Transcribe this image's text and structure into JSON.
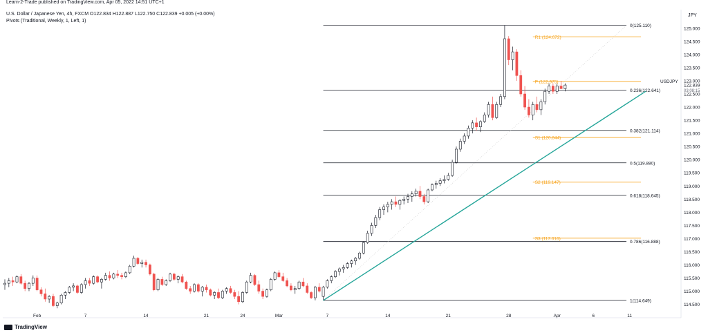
{
  "header": {
    "published": "Learn-2-Trade published on TradingView.com, Apr 05, 2022 14:51 UTC+1",
    "symbol_line": "U.S. Dollar / Japanese Yen, 4h, FXCM  O122.834  H122.887  L122.750  C122.839  +0.005 (+0.00%)",
    "indicator_line": "Pivots (Traditional, Weekly, 1, Left, 1)"
  },
  "footer": {
    "brand": "TradingView"
  },
  "colors": {
    "up": "#131722",
    "down": "#ef5350",
    "fib": "#131722",
    "pivot": "#f7a41d",
    "trend": "#26a69a"
  },
  "chart_data": {
    "type": "candlestick",
    "currency": "JPY",
    "symbol": "USDJPY",
    "last_price": "122.839",
    "countdown": "03:08:15",
    "ylim": [
      114.2,
      125.6
    ],
    "y_ticks": [
      "125.000",
      "124.500",
      "124.000",
      "123.500",
      "123.000",
      "122.500",
      "122.000",
      "121.500",
      "121.000",
      "120.500",
      "120.000",
      "119.500",
      "119.000",
      "118.500",
      "118.000",
      "117.500",
      "117.000",
      "116.500",
      "116.000",
      "115.500",
      "115.000",
      "114.500"
    ],
    "x_ticks": [
      {
        "label": "Feb",
        "i": 8
      },
      {
        "label": "7",
        "i": 20
      },
      {
        "label": "14",
        "i": 35
      },
      {
        "label": "21",
        "i": 50
      },
      {
        "label": "24",
        "i": 59
      },
      {
        "label": "Mar",
        "i": 68
      },
      {
        "label": "7",
        "i": 80
      },
      {
        "label": "14",
        "i": 95
      },
      {
        "label": "21",
        "i": 110
      },
      {
        "label": "28",
        "i": 125
      },
      {
        "label": "Apr",
        "i": 137
      },
      {
        "label": "6",
        "i": 146
      },
      {
        "label": "11",
        "i": 155
      }
    ],
    "fib_levels": [
      {
        "label": "0(125.110)",
        "value": 125.11
      },
      {
        "label": "0.236(122.641)",
        "value": 122.641
      },
      {
        "label": "0.382(121.114)",
        "value": 121.114
      },
      {
        "label": "0.5(119.880)",
        "value": 119.88
      },
      {
        "label": "0.618(118.645)",
        "value": 118.645
      },
      {
        "label": "0.786(116.888)",
        "value": 116.888
      },
      {
        "label": "1(114.649)",
        "value": 114.649
      }
    ],
    "pivot_levels": [
      {
        "label": "R1 (124.672)",
        "value": 124.672
      },
      {
        "label": "P (122.975)",
        "value": 122.975
      },
      {
        "label": "S1 (120.844)",
        "value": 120.844
      },
      {
        "label": "S2 (119.147)",
        "value": 119.147
      },
      {
        "label": "S3 (117.016)",
        "value": 117.016
      }
    ],
    "trendline": {
      "from": {
        "i": 79,
        "value": 114.649
      },
      "to": {
        "i": 159,
        "value": 122.6
      }
    },
    "candles": [
      [
        115.25,
        115.45,
        115.05,
        115.3
      ],
      [
        115.3,
        115.5,
        115.15,
        115.4
      ],
      [
        115.4,
        115.55,
        115.2,
        115.35
      ],
      [
        115.35,
        115.6,
        115.3,
        115.55
      ],
      [
        115.55,
        115.65,
        115.25,
        115.3
      ],
      [
        115.3,
        115.4,
        115.0,
        115.1
      ],
      [
        115.1,
        115.35,
        115.0,
        115.3
      ],
      [
        115.3,
        115.6,
        115.2,
        115.5
      ],
      [
        115.5,
        115.6,
        115.0,
        115.05
      ],
      [
        115.05,
        115.15,
        114.8,
        114.9
      ],
      [
        114.9,
        115.1,
        114.6,
        114.7
      ],
      [
        114.7,
        114.85,
        114.55,
        114.8
      ],
      [
        114.8,
        114.9,
        114.4,
        114.45
      ],
      [
        114.45,
        114.6,
        114.35,
        114.55
      ],
      [
        114.55,
        114.9,
        114.5,
        114.85
      ],
      [
        114.85,
        115.0,
        114.7,
        114.95
      ],
      [
        114.95,
        115.2,
        114.9,
        115.15
      ],
      [
        115.15,
        115.3,
        115.0,
        115.2
      ],
      [
        115.2,
        115.25,
        114.9,
        114.95
      ],
      [
        114.95,
        115.3,
        114.9,
        115.25
      ],
      [
        115.25,
        115.5,
        115.1,
        115.4
      ],
      [
        115.4,
        115.5,
        115.2,
        115.3
      ],
      [
        115.3,
        115.6,
        115.25,
        115.55
      ],
      [
        115.55,
        115.6,
        115.3,
        115.35
      ],
      [
        115.35,
        115.5,
        115.1,
        115.45
      ],
      [
        115.45,
        115.7,
        115.4,
        115.6
      ],
      [
        115.6,
        115.75,
        115.4,
        115.5
      ],
      [
        115.5,
        115.7,
        115.45,
        115.65
      ],
      [
        115.65,
        115.8,
        115.5,
        115.6
      ],
      [
        115.6,
        115.7,
        115.45,
        115.55
      ],
      [
        115.55,
        115.75,
        115.5,
        115.7
      ],
      [
        115.7,
        116.0,
        115.65,
        115.95
      ],
      [
        115.95,
        116.35,
        115.9,
        116.25
      ],
      [
        116.25,
        116.3,
        116.0,
        116.05
      ],
      [
        116.05,
        116.2,
        115.9,
        116.1
      ],
      [
        116.1,
        116.2,
        115.9,
        116.0
      ],
      [
        116.0,
        116.05,
        115.6,
        115.65
      ],
      [
        115.65,
        115.7,
        115.0,
        115.05
      ],
      [
        115.05,
        115.5,
        115.0,
        115.45
      ],
      [
        115.45,
        115.55,
        115.2,
        115.25
      ],
      [
        115.25,
        115.45,
        115.2,
        115.4
      ],
      [
        115.4,
        115.7,
        115.35,
        115.65
      ],
      [
        115.65,
        115.7,
        115.4,
        115.45
      ],
      [
        115.45,
        115.6,
        115.3,
        115.55
      ],
      [
        115.55,
        115.65,
        115.3,
        115.35
      ],
      [
        115.35,
        115.4,
        115.05,
        115.1
      ],
      [
        115.1,
        115.2,
        114.9,
        115.0
      ],
      [
        115.0,
        115.3,
        114.95,
        115.25
      ],
      [
        115.25,
        115.3,
        114.95,
        115.0
      ],
      [
        115.0,
        115.2,
        114.8,
        115.15
      ],
      [
        115.15,
        115.25,
        114.95,
        115.05
      ],
      [
        115.05,
        115.1,
        114.8,
        114.85
      ],
      [
        114.85,
        115.0,
        114.7,
        114.95
      ],
      [
        114.95,
        115.1,
        114.7,
        114.75
      ],
      [
        114.75,
        115.05,
        114.7,
        115.0
      ],
      [
        115.0,
        115.15,
        114.9,
        115.1
      ],
      [
        115.1,
        115.2,
        114.9,
        114.95
      ],
      [
        114.95,
        115.05,
        114.7,
        114.8
      ],
      [
        114.8,
        115.0,
        114.5,
        114.6
      ],
      [
        114.6,
        115.0,
        114.55,
        114.95
      ],
      [
        114.95,
        115.4,
        114.9,
        115.35
      ],
      [
        115.35,
        115.7,
        115.3,
        115.6
      ],
      [
        115.6,
        115.65,
        115.2,
        115.25
      ],
      [
        115.25,
        115.4,
        114.9,
        115.0
      ],
      [
        115.0,
        115.1,
        114.7,
        114.8
      ],
      [
        114.8,
        115.1,
        114.75,
        115.05
      ],
      [
        115.05,
        115.5,
        115.0,
        115.45
      ],
      [
        115.45,
        115.75,
        115.4,
        115.7
      ],
      [
        115.7,
        115.8,
        115.5,
        115.55
      ],
      [
        115.55,
        115.7,
        115.35,
        115.4
      ],
      [
        115.4,
        115.5,
        115.15,
        115.2
      ],
      [
        115.2,
        115.3,
        115.0,
        115.05
      ],
      [
        115.05,
        115.2,
        114.9,
        115.1
      ],
      [
        115.1,
        115.4,
        115.05,
        115.35
      ],
      [
        115.35,
        115.5,
        115.15,
        115.2
      ],
      [
        115.2,
        115.3,
        114.9,
        114.95
      ],
      [
        114.95,
        115.0,
        114.7,
        114.75
      ],
      [
        114.75,
        115.2,
        114.65,
        115.15
      ],
      [
        115.15,
        115.3,
        114.95,
        115.0
      ],
      [
        114.8,
        115.2,
        114.65,
        115.15
      ],
      [
        115.15,
        115.45,
        115.1,
        115.4
      ],
      [
        115.4,
        115.6,
        115.3,
        115.55
      ],
      [
        115.55,
        115.8,
        115.5,
        115.75
      ],
      [
        115.75,
        115.9,
        115.6,
        115.85
      ],
      [
        115.85,
        116.0,
        115.7,
        115.9
      ],
      [
        115.9,
        116.1,
        115.85,
        116.05
      ],
      [
        116.05,
        116.2,
        115.9,
        116.15
      ],
      [
        116.15,
        116.3,
        116.0,
        116.25
      ],
      [
        116.25,
        116.5,
        116.2,
        116.45
      ],
      [
        116.45,
        116.9,
        116.4,
        116.85
      ],
      [
        116.85,
        117.3,
        116.8,
        117.2
      ],
      [
        117.2,
        117.6,
        117.1,
        117.5
      ],
      [
        117.5,
        117.9,
        117.4,
        117.8
      ],
      [
        117.8,
        118.2,
        117.7,
        118.1
      ],
      [
        118.1,
        118.3,
        117.9,
        118.2
      ],
      [
        118.2,
        118.4,
        118.0,
        118.3
      ],
      [
        118.3,
        118.5,
        118.1,
        118.4
      ],
      [
        118.4,
        118.6,
        118.2,
        118.3
      ],
      [
        118.3,
        118.5,
        118.1,
        118.45
      ],
      [
        118.45,
        118.6,
        118.3,
        118.5
      ],
      [
        118.5,
        118.7,
        118.35,
        118.6
      ],
      [
        118.6,
        118.8,
        118.4,
        118.7
      ],
      [
        118.7,
        118.9,
        118.6,
        118.8
      ],
      [
        118.8,
        119.0,
        118.5,
        118.6
      ],
      [
        118.6,
        118.7,
        118.3,
        118.4
      ],
      [
        118.4,
        118.9,
        118.35,
        118.85
      ],
      [
        118.85,
        119.1,
        118.8,
        119.05
      ],
      [
        119.05,
        119.2,
        118.9,
        119.1
      ],
      [
        119.1,
        119.3,
        119.0,
        119.2
      ],
      [
        119.2,
        119.4,
        119.1,
        119.25
      ],
      [
        119.25,
        119.5,
        119.2,
        119.4
      ],
      [
        119.4,
        120.0,
        119.35,
        119.9
      ],
      [
        119.9,
        120.5,
        119.85,
        120.4
      ],
      [
        120.4,
        120.8,
        120.3,
        120.7
      ],
      [
        120.7,
        121.0,
        120.6,
        120.9
      ],
      [
        120.9,
        121.3,
        120.8,
        121.2
      ],
      [
        121.2,
        121.5,
        121.0,
        121.4
      ],
      [
        121.4,
        121.6,
        121.1,
        121.25
      ],
      [
        121.25,
        121.5,
        121.05,
        121.45
      ],
      [
        121.45,
        121.8,
        121.4,
        121.7
      ],
      [
        121.7,
        122.2,
        121.6,
        122.1
      ],
      [
        122.1,
        122.4,
        121.5,
        121.6
      ],
      [
        121.6,
        122.2,
        121.55,
        122.1
      ],
      [
        122.1,
        122.5,
        122.0,
        122.4
      ],
      [
        122.4,
        125.11,
        122.3,
        124.6
      ],
      [
        124.6,
        124.7,
        123.6,
        123.8
      ],
      [
        123.8,
        124.3,
        123.4,
        124.1
      ],
      [
        124.1,
        124.2,
        123.0,
        123.2
      ],
      [
        123.2,
        123.4,
        122.4,
        122.5
      ],
      [
        122.5,
        122.8,
        121.9,
        122.0
      ],
      [
        122.0,
        122.3,
        121.6,
        121.7
      ],
      [
        121.7,
        122.2,
        121.5,
        122.1
      ],
      [
        122.1,
        122.4,
        121.8,
        121.9
      ],
      [
        121.9,
        122.3,
        121.7,
        122.2
      ],
      [
        122.2,
        122.7,
        122.1,
        122.6
      ],
      [
        122.6,
        122.9,
        122.5,
        122.8
      ],
      [
        122.8,
        122.9,
        122.5,
        122.6
      ],
      [
        122.6,
        122.9,
        122.5,
        122.8
      ],
      [
        122.8,
        123.0,
        122.7,
        122.7
      ],
      [
        122.7,
        122.9,
        122.6,
        122.839
      ]
    ]
  }
}
